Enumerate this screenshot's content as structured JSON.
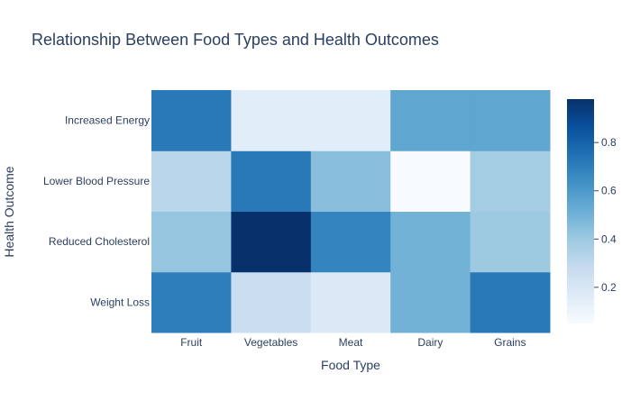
{
  "chart_data": {
    "type": "heatmap",
    "title": "Relationship Between Food Types and Health Outcomes",
    "xlabel": "Food Type",
    "ylabel": "Health Outcome",
    "x": [
      "Fruit",
      "Vegetables",
      "Meat",
      "Dairy",
      "Grains"
    ],
    "y": [
      "Weight Loss",
      "Reduced Cholesterol",
      "Lower Blood Pressure",
      "Increased Energy"
    ],
    "z": [
      [
        0.7,
        0.26,
        0.18,
        0.5,
        0.72
      ],
      [
        0.42,
        0.98,
        0.68,
        0.5,
        0.4
      ],
      [
        0.32,
        0.72,
        0.45,
        0.05,
        0.38
      ],
      [
        0.72,
        0.15,
        0.15,
        0.55,
        0.55
      ]
    ],
    "colorscale": "Blues",
    "zmin": 0.05,
    "zmax": 0.98,
    "colorbar": {
      "ticks": [
        0.2,
        0.4,
        0.6,
        0.8
      ]
    },
    "grid": false,
    "colors": {
      "text": "#2a3f5f",
      "background": "#ffffff"
    }
  }
}
